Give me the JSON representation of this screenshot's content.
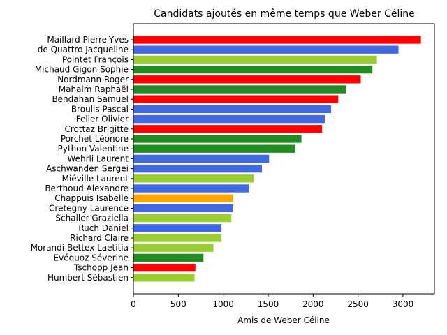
{
  "chart_data": {
    "type": "bar",
    "orientation": "horizontal",
    "title": "Candidats ajoutés en même temps que Weber Céline",
    "xlabel": "Amis de Weber Céline",
    "ylabel": "",
    "xlim": [
      0,
      3350
    ],
    "xticks": [
      0,
      500,
      1000,
      1500,
      2000,
      2500,
      3000
    ],
    "grid": false,
    "legend": "none",
    "bars": [
      {
        "label": "Maillard Pierre-Yves",
        "value": 3200,
        "color": "#ff0000"
      },
      {
        "label": "de Quattro Jacqueline",
        "value": 2950,
        "color": "#4169e1"
      },
      {
        "label": "Pointet François",
        "value": 2710,
        "color": "#9acd32"
      },
      {
        "label": "Michaud Gigon Sophie",
        "value": 2660,
        "color": "#228b22"
      },
      {
        "label": "Nordmann Roger",
        "value": 2530,
        "color": "#ff0000"
      },
      {
        "label": "Mahaim Raphaël",
        "value": 2370,
        "color": "#228b22"
      },
      {
        "label": "Bendahan Samuel",
        "value": 2280,
        "color": "#ff0000"
      },
      {
        "label": "Broulis Pascal",
        "value": 2200,
        "color": "#4169e1"
      },
      {
        "label": "Feller Olivier",
        "value": 2130,
        "color": "#4169e1"
      },
      {
        "label": "Crottaz Brigitte",
        "value": 2100,
        "color": "#ff0000"
      },
      {
        "label": "Porchet Léonore",
        "value": 1870,
        "color": "#228b22"
      },
      {
        "label": "Python Valentine",
        "value": 1800,
        "color": "#228b22"
      },
      {
        "label": "Wehrli Laurent",
        "value": 1510,
        "color": "#4169e1"
      },
      {
        "label": "Aschwanden Sergei",
        "value": 1430,
        "color": "#4169e1"
      },
      {
        "label": "Miéville Laurent",
        "value": 1340,
        "color": "#9acd32"
      },
      {
        "label": "Berthoud Alexandre",
        "value": 1290,
        "color": "#4169e1"
      },
      {
        "label": "Chappuis Isabelle",
        "value": 1110,
        "color": "#ffa500"
      },
      {
        "label": "Cretegny Laurence",
        "value": 1110,
        "color": "#4169e1"
      },
      {
        "label": "Schaller Graziella",
        "value": 1090,
        "color": "#9acd32"
      },
      {
        "label": "Ruch Daniel",
        "value": 980,
        "color": "#4169e1"
      },
      {
        "label": "Richard Claire",
        "value": 980,
        "color": "#9acd32"
      },
      {
        "label": "Morandi-Bettex Laetitia",
        "value": 890,
        "color": "#9acd32"
      },
      {
        "label": "Evéquoz Séverine",
        "value": 780,
        "color": "#228b22"
      },
      {
        "label": "Tschopp Jean",
        "value": 690,
        "color": "#ff0000"
      },
      {
        "label": "Humbert Sébastien",
        "value": 680,
        "color": "#9acd32"
      }
    ]
  }
}
